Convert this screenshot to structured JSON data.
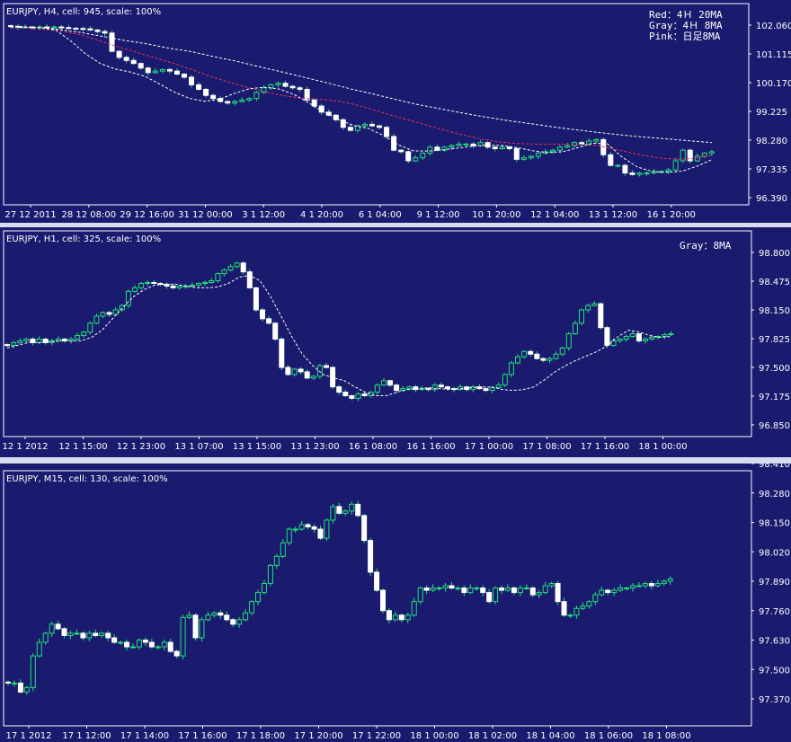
{
  "chart_data": [
    {
      "type": "candlestick",
      "title": "EURJPY, H4, cell: 945, scale: 100%",
      "legend": [
        "Red：4Ｈ 20MA",
        "Gray：4Ｈ  8MA",
        "Pink：日足8MA"
      ],
      "y_ticks": [
        "102.060",
        "101.115",
        "100.170",
        "99.225",
        "98.280",
        "97.335",
        "96.390"
      ],
      "x_ticks": [
        "27 12 2011",
        "28 12 08:00",
        "29 12 16:00",
        "31 12 00:00",
        "3 1 12:00",
        "4 1 20:00",
        "6 1 04:00",
        "9 1 12:00",
        "10 1 20:00",
        "12 1 04:00",
        "13 1 12:00",
        "16 1 20:00"
      ],
      "ylim": [
        96.39,
        102.06
      ],
      "close": [
        102.02,
        102.0,
        102.0,
        101.99,
        102.0,
        101.98,
        102.0,
        101.98,
        101.96,
        101.95,
        101.94,
        101.9,
        101.85,
        101.8,
        101.2,
        101.0,
        100.9,
        100.8,
        100.65,
        100.5,
        100.55,
        100.6,
        100.55,
        100.45,
        100.35,
        100.1,
        99.95,
        99.75,
        99.65,
        99.55,
        99.5,
        99.55,
        99.6,
        99.65,
        99.85,
        100.0,
        100.1,
        100.15,
        100.05,
        100.0,
        99.95,
        99.6,
        99.4,
        99.2,
        99.1,
        98.95,
        98.7,
        98.6,
        98.75,
        98.8,
        98.75,
        98.7,
        98.4,
        97.95,
        97.9,
        97.6,
        97.7,
        97.85,
        98.05,
        97.95,
        98.05,
        98.1,
        98.15,
        98.15,
        98.1,
        98.2,
        98.05,
        98.0,
        98.05,
        98.0,
        97.65,
        97.7,
        97.75,
        97.85,
        97.9,
        97.95,
        98.05,
        98.1,
        98.2,
        98.15,
        98.25,
        98.3,
        97.8,
        97.45,
        97.45,
        97.2,
        97.15,
        97.2,
        97.2,
        97.25,
        97.25,
        97.3,
        97.6,
        97.95,
        97.6,
        97.75,
        97.85,
        97.9
      ],
      "series": [
        {
          "name": "Red",
          "color": "#e0345a",
          "values": [
            101.98,
            101.96,
            101.92,
            101.87,
            101.78,
            101.63,
            101.45,
            101.28,
            101.12,
            100.96,
            100.8,
            100.62,
            100.42,
            100.25,
            100.08,
            99.95,
            99.82,
            99.72,
            99.65,
            99.62,
            99.57,
            99.46,
            99.32,
            99.15,
            99.0,
            98.85,
            98.7,
            98.55,
            98.42,
            98.3,
            98.22,
            98.17,
            98.15,
            98.14,
            98.15,
            98.14,
            98.1,
            97.99,
            97.87,
            97.76,
            97.68,
            97.65,
            97.68,
            97.78
          ]
        },
        {
          "name": "Gray",
          "color": "#ffffff",
          "values": [
            102.0,
            101.99,
            101.98,
            101.9,
            101.55,
            101.12,
            100.8,
            100.62,
            100.52,
            100.38,
            100.12,
            99.85,
            99.65,
            99.56,
            99.62,
            99.82,
            99.97,
            100.02,
            99.96,
            99.78,
            99.5,
            99.2,
            98.95,
            98.76,
            98.66,
            98.43,
            98.12,
            97.93,
            97.92,
            97.96,
            98.02,
            98.08,
            98.12,
            98.1,
            98.03,
            97.93,
            97.87,
            97.9,
            98.03,
            98.18,
            98.16,
            97.72,
            97.4,
            97.25,
            97.22,
            97.26,
            97.42,
            97.64
          ]
        },
        {
          "name": "Pink",
          "color": "#ffffff",
          "values": [
            102.03,
            101.99,
            101.93,
            101.83,
            101.7,
            101.56,
            101.45,
            101.3,
            101.19,
            101.02,
            100.87,
            100.69,
            100.52,
            100.34,
            100.16,
            99.97,
            99.8,
            99.62,
            99.45,
            99.31,
            99.17,
            99.04,
            98.92,
            98.82,
            98.71,
            98.62,
            98.53,
            98.45,
            98.38,
            98.32,
            98.26,
            98.2
          ]
        }
      ]
    },
    {
      "type": "candlestick",
      "title": "EURJPY, H1, cell: 325, scale: 100%",
      "legend": [
        "Gray：8MA"
      ],
      "y_ticks": [
        "98.800",
        "98.475",
        "98.150",
        "97.825",
        "97.500",
        "97.175",
        "96.850"
      ],
      "x_ticks": [
        "12 1 2012",
        "12 1 15:00",
        "12 1 23:00",
        "13 1 07:00",
        "13 1 15:00",
        "13 1 23:00",
        "16 1 08:00",
        "16 1 16:00",
        "17 1 00:00",
        "17 1 08:00",
        "17 1 16:00",
        "18 1 00:00"
      ],
      "ylim": [
        96.85,
        98.8
      ],
      "close": [
        97.75,
        97.78,
        97.8,
        97.82,
        97.78,
        97.82,
        97.78,
        97.8,
        97.82,
        97.8,
        97.82,
        97.86,
        97.9,
        98.0,
        98.08,
        98.12,
        98.1,
        98.15,
        98.2,
        98.36,
        98.4,
        98.45,
        98.46,
        98.45,
        98.44,
        98.42,
        98.4,
        98.42,
        98.42,
        98.43,
        98.45,
        98.46,
        98.48,
        98.56,
        98.6,
        98.64,
        98.68,
        98.58,
        98.4,
        98.15,
        98.05,
        98.0,
        97.82,
        97.5,
        97.42,
        97.48,
        97.45,
        97.38,
        97.4,
        97.52,
        97.5,
        97.28,
        97.22,
        97.18,
        97.15,
        97.2,
        97.18,
        97.22,
        97.3,
        97.35,
        97.3,
        97.24,
        97.26,
        97.28,
        97.25,
        97.26,
        97.25,
        97.3,
        97.28,
        97.26,
        97.25,
        97.28,
        97.25,
        97.28,
        97.26,
        97.24,
        97.27,
        97.3,
        97.42,
        97.55,
        97.62,
        97.68,
        97.65,
        97.6,
        97.58,
        97.6,
        97.65,
        97.72,
        97.88,
        98.0,
        98.15,
        98.2,
        98.22,
        97.95,
        97.75,
        97.8,
        97.82,
        97.85,
        97.88,
        97.8,
        97.82,
        97.84,
        97.85,
        97.87,
        97.88
      ],
      "series": [
        {
          "name": "Gray",
          "color": "#ffffff",
          "values": [
            97.72,
            97.75,
            97.78,
            97.78,
            97.79,
            97.8,
            97.8,
            97.8,
            97.84,
            97.92,
            98.05,
            98.18,
            98.3,
            98.38,
            98.43,
            98.44,
            98.44,
            98.42,
            98.4,
            98.4,
            98.41,
            98.45,
            98.52,
            98.54,
            98.48,
            98.3,
            98.08,
            97.85,
            97.65,
            97.52,
            97.42,
            97.38,
            97.35,
            97.28,
            97.22,
            97.18,
            97.18,
            97.22,
            97.25,
            97.26,
            97.27,
            97.26,
            97.25,
            97.26,
            97.27,
            97.28,
            97.28,
            97.25,
            97.24,
            97.25,
            97.28,
            97.36,
            97.45,
            97.52,
            97.58,
            97.63,
            97.68,
            97.75,
            97.85,
            97.92,
            97.9,
            97.86,
            97.84,
            97.85
          ]
        }
      ]
    },
    {
      "type": "candlestick",
      "title": "EURJPY, M15, cell: 130, scale: 100%",
      "legend": [],
      "y_ticks": [
        "98.410",
        "98.280",
        "98.150",
        "98.020",
        "97.890",
        "97.760",
        "97.630",
        "97.500",
        "97.370"
      ],
      "x_ticks": [
        "17 1 2012",
        "17 1 12:00",
        "17 1 14:00",
        "17 1 16:00",
        "17 1 18:00",
        "17 1 20:00",
        "17 1 22:00",
        "18 1 00:00",
        "18 1 02:00",
        "18 1 04:00",
        "18 1 06:00",
        "18 1 08:00"
      ],
      "ylim": [
        97.37,
        98.41
      ],
      "close": [
        97.44,
        97.44,
        97.4,
        97.42,
        97.56,
        97.62,
        97.66,
        97.7,
        97.68,
        97.65,
        97.66,
        97.66,
        97.64,
        97.66,
        97.65,
        97.66,
        97.64,
        97.62,
        97.62,
        97.6,
        97.6,
        97.63,
        97.62,
        97.6,
        97.6,
        97.62,
        97.58,
        97.56,
        97.73,
        97.74,
        97.64,
        97.72,
        97.74,
        97.75,
        97.74,
        97.72,
        97.7,
        97.72,
        97.75,
        97.8,
        97.84,
        97.88,
        97.96,
        98.0,
        98.06,
        98.12,
        98.12,
        98.14,
        98.13,
        98.12,
        98.08,
        98.16,
        98.22,
        98.19,
        98.2,
        98.23,
        98.18,
        98.07,
        97.93,
        97.85,
        97.76,
        97.72,
        97.74,
        97.72,
        97.74,
        97.8,
        97.86,
        97.85,
        97.86,
        97.86,
        97.87,
        97.86,
        97.86,
        97.84,
        97.86,
        97.86,
        97.84,
        97.8,
        97.86,
        97.85,
        97.86,
        97.84,
        97.86,
        97.86,
        97.83,
        97.84,
        97.87,
        97.88,
        97.8,
        97.74,
        97.74,
        97.77,
        97.78,
        97.8,
        97.83,
        97.85,
        97.84,
        97.85,
        97.86,
        97.86,
        97.87,
        97.87,
        97.88,
        97.87,
        97.88,
        97.89,
        97.9
      ]
    }
  ]
}
